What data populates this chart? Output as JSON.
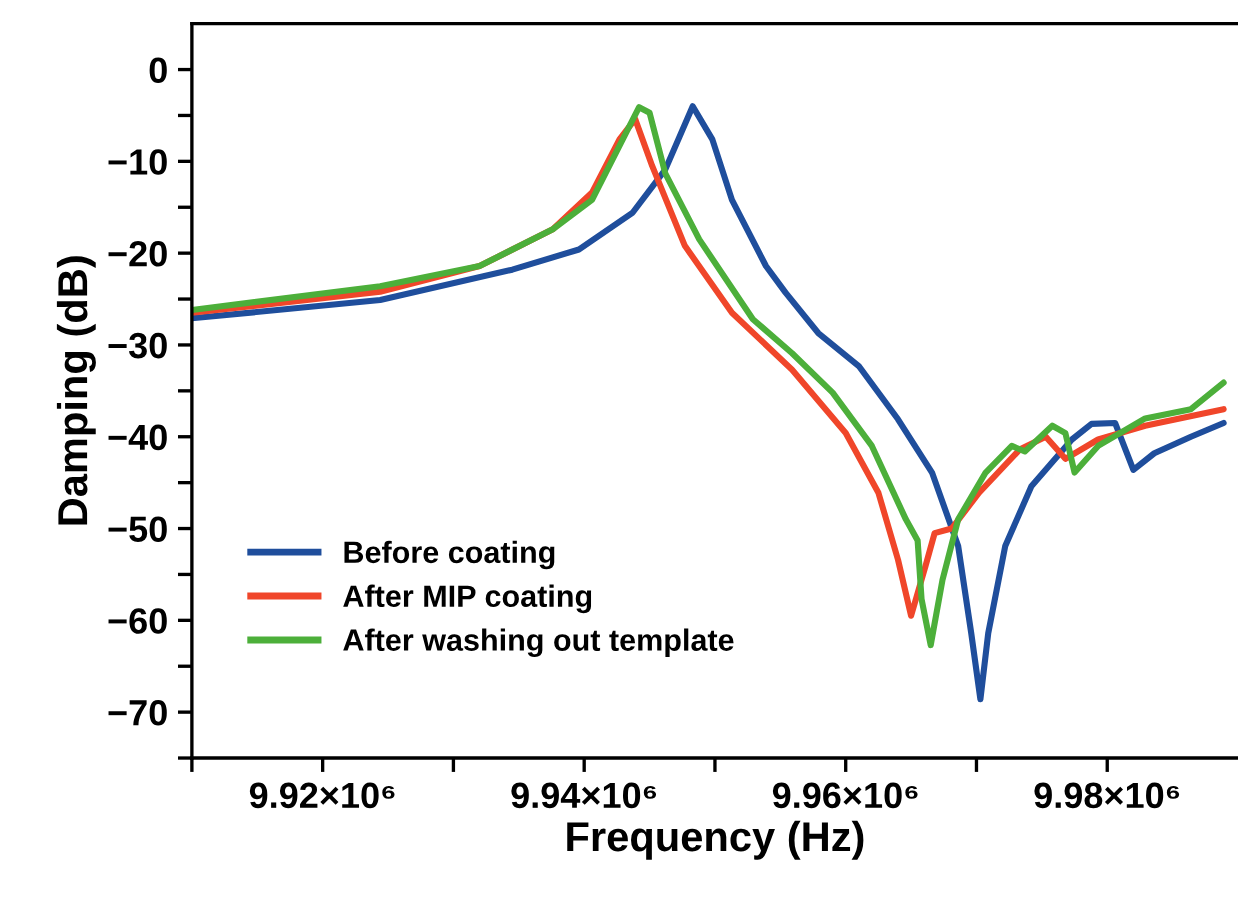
{
  "chart_data": {
    "type": "line",
    "xlabel": "Frequency (Hz)",
    "ylabel": "Damping (dB)",
    "xlim": [
      9910000,
      9990000
    ],
    "xticks": [
      {
        "value": 9910000,
        "label": null
      },
      {
        "value": 9920000,
        "label": "9.92×10⁶"
      },
      {
        "value": 9930000,
        "label": null
      },
      {
        "value": 9940000,
        "label": "9.94×10⁶"
      },
      {
        "value": 9950000,
        "label": null
      },
      {
        "value": 9960000,
        "label": "9.96×10⁶"
      },
      {
        "value": 9970000,
        "label": null
      },
      {
        "value": 9980000,
        "label": "9.98×10⁶"
      }
    ],
    "ylim": [
      -75,
      5
    ],
    "yticks": [
      {
        "value": -75,
        "label": null
      },
      {
        "value": -70,
        "label": "−70"
      },
      {
        "value": -65,
        "label": null
      },
      {
        "value": -60,
        "label": "−60"
      },
      {
        "value": -55,
        "label": null
      },
      {
        "value": -50,
        "label": "−50"
      },
      {
        "value": -45,
        "label": null
      },
      {
        "value": -40,
        "label": "−40"
      },
      {
        "value": -35,
        "label": null
      },
      {
        "value": -30,
        "label": "−30"
      },
      {
        "value": -25,
        "label": null
      },
      {
        "value": -20,
        "label": "−20"
      },
      {
        "value": -15,
        "label": null
      },
      {
        "value": -10,
        "label": "−10"
      },
      {
        "value": -5,
        "label": null
      },
      {
        "value": 0,
        "label": "0"
      }
    ],
    "grid": false,
    "legend": "bottom left",
    "marker": "none",
    "line_style": "solid",
    "series": [
      {
        "name": "Before coating",
        "color": "#1f4e9c",
        "x": [
          9910000,
          9924400,
          9934500,
          9939600,
          9943700,
          9946200,
          9948300,
          9949800,
          9951300,
          9953900,
          9955400,
          9957900,
          9961000,
          9964000,
          9966600,
          9968600,
          9969600,
          9970300,
          9970900,
          9972200,
          9974200,
          9977300,
          9978800,
          9980600,
          9982000,
          9983600,
          9986400,
          9988900
        ],
        "values": [
          -27.1,
          -25.1,
          -21.8,
          -19.6,
          -15.6,
          -10.9,
          -4.0,
          -7.6,
          -14.2,
          -21.4,
          -24.3,
          -28.7,
          -32.3,
          -38.1,
          -43.9,
          -51.9,
          -61.4,
          -68.6,
          -61.4,
          -51.9,
          -45.4,
          -40.3,
          -38.6,
          -38.5,
          -43.6,
          -41.8,
          -40.0,
          -38.5
        ]
      },
      {
        "name": "After MIP coating",
        "color": "#f0462a",
        "x": [
          9910000,
          9924400,
          9932000,
          9937600,
          9940600,
          9942700,
          9943900,
          9945200,
          9947700,
          9951300,
          9955900,
          9960000,
          9962500,
          9964000,
          9965000,
          9966100,
          9966800,
          9968100,
          9970200,
          9973300,
          9975300,
          9976800,
          9979300,
          9982900,
          9988900
        ],
        "values": [
          -26.5,
          -24.2,
          -21.4,
          -17.4,
          -13.4,
          -7.6,
          -5.4,
          -10.5,
          -19.2,
          -26.5,
          -32.7,
          -39.6,
          -46.1,
          -53.4,
          -59.5,
          -54.1,
          -50.5,
          -50.0,
          -46.1,
          -41.4,
          -40.0,
          -42.4,
          -40.3,
          -38.8,
          -37.0
        ]
      },
      {
        "name": "After washing out template",
        "color": "#4caf3a",
        "x": [
          9910000,
          9924400,
          9932000,
          9937600,
          9940600,
          9943200,
          9944200,
          9945000,
          9946200,
          9948800,
          9952900,
          9955900,
          9959000,
          9962000,
          9964600,
          9965500,
          9965800,
          9966500,
          9967400,
          9968600,
          9970700,
          9972700,
          9973700,
          9975800,
          9976800,
          9977500,
          9979300,
          9982900,
          9986400,
          9988900
        ],
        "values": [
          -26.2,
          -23.6,
          -21.4,
          -17.4,
          -14.2,
          -6.9,
          -4.1,
          -4.7,
          -11.3,
          -18.5,
          -27.2,
          -30.9,
          -35.2,
          -41.0,
          -49.0,
          -51.3,
          -57.7,
          -62.7,
          -55.6,
          -49.0,
          -43.9,
          -41.0,
          -41.6,
          -38.8,
          -39.6,
          -43.9,
          -41.0,
          -38.0,
          -37.0,
          -34.1
        ]
      }
    ]
  }
}
